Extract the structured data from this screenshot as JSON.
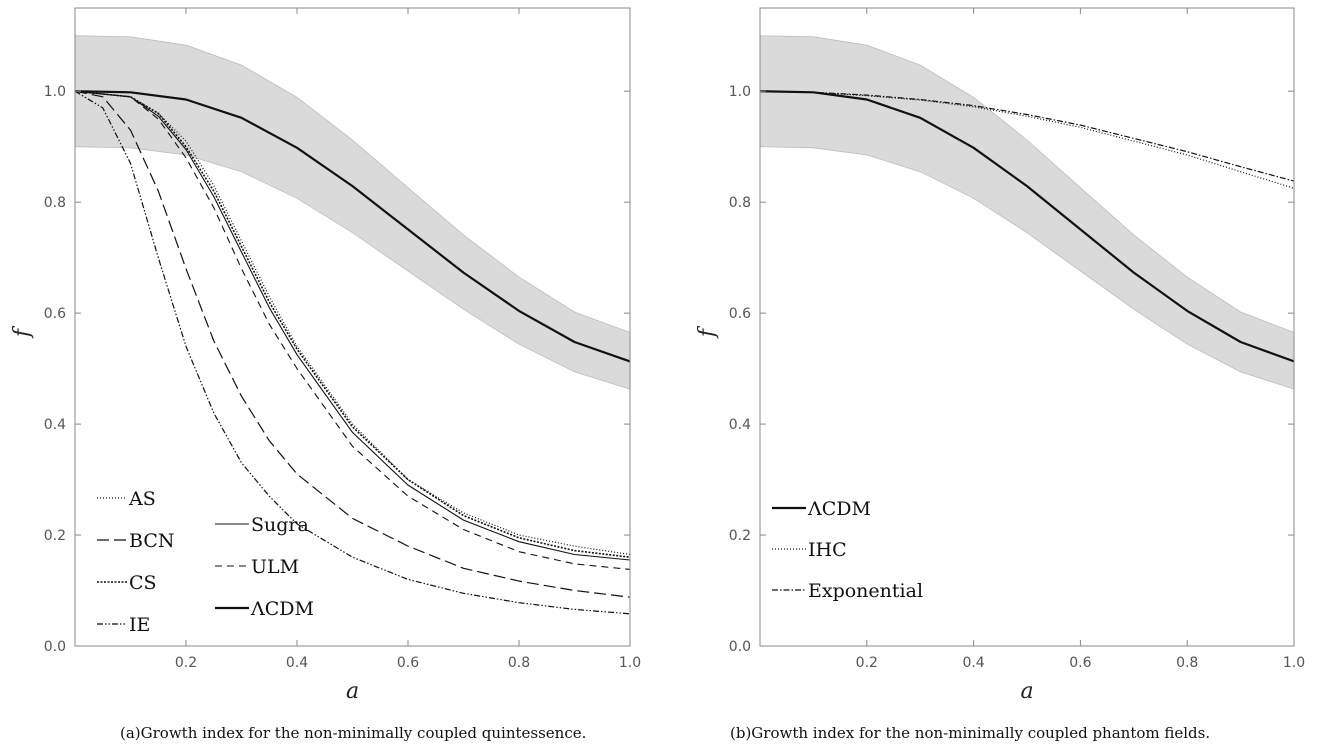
{
  "chart_data": [
    {
      "panel": "a",
      "type": "line",
      "caption": "(a)Growth index for the non-minimally coupled quintessence.",
      "xlabel": "a",
      "ylabel": "f",
      "xlim": [
        0,
        1
      ],
      "ylim": [
        0,
        1.15
      ],
      "xticks": [
        "0.2",
        "0.4",
        "0.6",
        "0.8",
        "1.0"
      ],
      "yticks": [
        "0.0",
        "0.2",
        "0.4",
        "0.6",
        "0.8",
        "1.0"
      ],
      "grid": false,
      "legend_position": "bottom-left",
      "band": {
        "x": [
          0,
          0.1,
          0.2,
          0.3,
          0.4,
          0.5,
          0.6,
          0.7,
          0.8,
          0.9,
          1.0
        ],
        "upper": [
          1.1,
          1.098,
          1.083,
          1.047,
          0.989,
          0.912,
          0.826,
          0.741,
          0.665,
          0.602,
          0.565
        ],
        "lower": [
          0.9,
          0.898,
          0.885,
          0.855,
          0.807,
          0.745,
          0.676,
          0.607,
          0.544,
          0.494,
          0.463
        ]
      },
      "series": [
        {
          "name": "AS",
          "dash": "1 2",
          "width": 1.2,
          "x": [
            0,
            0.1,
            0.15,
            0.2,
            0.25,
            0.3,
            0.35,
            0.4,
            0.5,
            0.6,
            0.7,
            0.8,
            0.9,
            1.0
          ],
          "y": [
            1.0,
            0.99,
            0.96,
            0.91,
            0.83,
            0.73,
            0.63,
            0.54,
            0.4,
            0.3,
            0.24,
            0.2,
            0.18,
            0.165
          ]
        },
        {
          "name": "BCN",
          "dash": "12 5",
          "width": 1.2,
          "x": [
            0,
            0.05,
            0.1,
            0.15,
            0.2,
            0.25,
            0.3,
            0.35,
            0.4,
            0.5,
            0.6,
            0.7,
            0.8,
            0.9,
            1.0
          ],
          "y": [
            1.0,
            0.99,
            0.93,
            0.82,
            0.68,
            0.55,
            0.45,
            0.37,
            0.31,
            0.23,
            0.18,
            0.14,
            0.117,
            0.1,
            0.088
          ]
        },
        {
          "name": "CS",
          "dash": "2 1.5",
          "width": 1.6,
          "x": [
            0,
            0.1,
            0.15,
            0.2,
            0.25,
            0.3,
            0.35,
            0.4,
            0.5,
            0.6,
            0.7,
            0.8,
            0.9,
            1.0
          ],
          "y": [
            1.0,
            0.99,
            0.96,
            0.9,
            0.82,
            0.72,
            0.62,
            0.535,
            0.395,
            0.3,
            0.235,
            0.195,
            0.172,
            0.16
          ]
        },
        {
          "name": "IE",
          "dash": "6 2 1.5 2 1.5 2",
          "width": 1.2,
          "x": [
            0,
            0.05,
            0.1,
            0.15,
            0.2,
            0.25,
            0.3,
            0.35,
            0.4,
            0.5,
            0.6,
            0.7,
            0.8,
            0.9,
            1.0
          ],
          "y": [
            1.0,
            0.97,
            0.87,
            0.7,
            0.54,
            0.42,
            0.33,
            0.27,
            0.22,
            0.16,
            0.12,
            0.095,
            0.078,
            0.066,
            0.058
          ]
        },
        {
          "name": "Sugra",
          "dash": "",
          "width": 1.1,
          "x": [
            0,
            0.1,
            0.15,
            0.2,
            0.25,
            0.3,
            0.35,
            0.4,
            0.5,
            0.6,
            0.7,
            0.8,
            0.9,
            1.0
          ],
          "y": [
            1.0,
            0.99,
            0.955,
            0.895,
            0.81,
            0.71,
            0.61,
            0.525,
            0.385,
            0.29,
            0.227,
            0.188,
            0.165,
            0.155
          ]
        },
        {
          "name": "ULM",
          "dash": "7 5",
          "width": 1.1,
          "x": [
            0,
            0.1,
            0.15,
            0.2,
            0.25,
            0.3,
            0.35,
            0.4,
            0.5,
            0.6,
            0.7,
            0.8,
            0.9,
            1.0
          ],
          "y": [
            1.0,
            0.99,
            0.95,
            0.88,
            0.79,
            0.68,
            0.58,
            0.5,
            0.36,
            0.27,
            0.21,
            0.17,
            0.148,
            0.138
          ]
        },
        {
          "name": "ΛCDM",
          "dash": "",
          "width": 2.2,
          "x": [
            0,
            0.1,
            0.2,
            0.3,
            0.4,
            0.5,
            0.6,
            0.7,
            0.8,
            0.9,
            1.0
          ],
          "y": [
            1.0,
            0.998,
            0.985,
            0.952,
            0.898,
            0.829,
            0.751,
            0.673,
            0.604,
            0.548,
            0.513
          ]
        }
      ],
      "legend": {
        "col1": [
          "AS",
          "BCN",
          "CS",
          "IE"
        ],
        "col2": [
          "Sugra",
          "ULM",
          "ΛCDM"
        ]
      }
    },
    {
      "panel": "b",
      "type": "line",
      "caption": "(b)Growth index for the non-minimally coupled phantom fields.",
      "xlabel": "a",
      "ylabel": "f",
      "xlim": [
        0,
        1
      ],
      "ylim": [
        0,
        1.15
      ],
      "xticks": [
        "0.2",
        "0.4",
        "0.6",
        "0.8",
        "1.0"
      ],
      "yticks": [
        "0.0",
        "0.2",
        "0.4",
        "0.6",
        "0.8",
        "1.0"
      ],
      "grid": false,
      "legend_position": "bottom-left",
      "band": {
        "x": [
          0,
          0.1,
          0.2,
          0.3,
          0.4,
          0.5,
          0.6,
          0.7,
          0.8,
          0.9,
          1.0
        ],
        "upper": [
          1.1,
          1.098,
          1.083,
          1.047,
          0.989,
          0.912,
          0.826,
          0.741,
          0.665,
          0.602,
          0.565
        ],
        "lower": [
          0.9,
          0.898,
          0.885,
          0.855,
          0.807,
          0.745,
          0.676,
          0.607,
          0.544,
          0.494,
          0.463
        ]
      },
      "series": [
        {
          "name": "ΛCDM",
          "dash": "",
          "width": 2.2,
          "x": [
            0,
            0.1,
            0.2,
            0.3,
            0.4,
            0.5,
            0.6,
            0.7,
            0.8,
            0.9,
            1.0
          ],
          "y": [
            1.0,
            0.998,
            0.985,
            0.952,
            0.898,
            0.829,
            0.751,
            0.673,
            0.604,
            0.548,
            0.513
          ]
        },
        {
          "name": "IHC",
          "dash": "1 2",
          "width": 1.2,
          "x": [
            0,
            0.1,
            0.2,
            0.3,
            0.4,
            0.5,
            0.6,
            0.7,
            0.8,
            0.9,
            1.0
          ],
          "y": [
            1.0,
            0.998,
            0.992,
            0.984,
            0.972,
            0.955,
            0.935,
            0.91,
            0.885,
            0.855,
            0.825
          ]
        },
        {
          "name": "Exponential",
          "dash": "6 2 1.5 2",
          "width": 1.2,
          "x": [
            0,
            0.1,
            0.2,
            0.3,
            0.4,
            0.5,
            0.6,
            0.7,
            0.8,
            0.9,
            1.0
          ],
          "y": [
            1.0,
            0.998,
            0.993,
            0.985,
            0.974,
            0.958,
            0.939,
            0.915,
            0.891,
            0.864,
            0.838
          ]
        }
      ],
      "legend": {
        "col1": [
          "ΛCDM",
          "IHC",
          "Exponential"
        ]
      }
    }
  ]
}
